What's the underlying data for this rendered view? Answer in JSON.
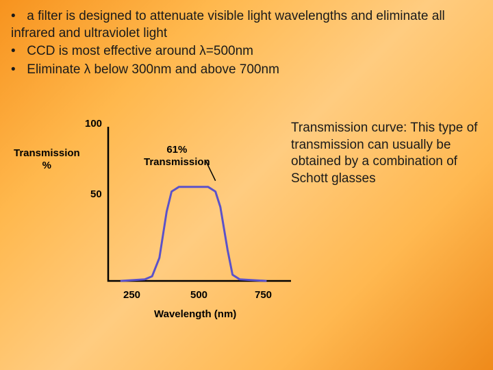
{
  "background": {
    "gradient_stops": [
      "#f7931e",
      "#ffb84d",
      "#ffcc80",
      "#ffb850",
      "#ef8a1a"
    ],
    "gradient_angle": 135
  },
  "bullets": [
    "a filter is designed to attenuate visible light wavelengths and eliminate all infrared and ultraviolet light",
    "CCD is most effective around λ=500nm",
    "Eliminate λ below 300nm and above 700nm"
  ],
  "bullet_indent_first_only": true,
  "chart": {
    "type": "line",
    "y_axis_label": "Transmission\n%",
    "y_ticks": [
      50,
      100
    ],
    "y_tick_labels": [
      "50",
      "100"
    ],
    "x_axis_label": "Wavelength (nm)",
    "x_ticks": [
      250,
      500,
      750
    ],
    "x_tick_labels": [
      "250",
      "500",
      "750"
    ],
    "xlim": [
      150,
      900
    ],
    "ylim": [
      0,
      100
    ],
    "peak_label": "61%\nTransmission",
    "curve": {
      "points": [
        [
          200,
          0
        ],
        [
          300,
          1
        ],
        [
          330,
          3
        ],
        [
          360,
          15
        ],
        [
          390,
          45
        ],
        [
          410,
          58
        ],
        [
          440,
          61
        ],
        [
          500,
          61
        ],
        [
          560,
          61
        ],
        [
          590,
          58
        ],
        [
          610,
          48
        ],
        [
          640,
          20
        ],
        [
          660,
          4
        ],
        [
          690,
          1
        ],
        [
          800,
          0
        ]
      ],
      "stroke": "#5b52c9",
      "stroke_width": 3,
      "fill": "none"
    },
    "axis_color": "#000000",
    "axis_width": 2.5,
    "pointer_line": {
      "from": [
        550,
        78
      ],
      "to": [
        590,
        65
      ],
      "stroke": "#000000",
      "stroke_width": 1.5
    }
  },
  "side_text": "Transmission curve: This type of transmission can usually be obtained by a combination of Schott glasses",
  "text_color": "#1a1a1a",
  "fonts": {
    "body_size": 19,
    "chart_label_size": 15,
    "chart_label_weight": "bold"
  }
}
